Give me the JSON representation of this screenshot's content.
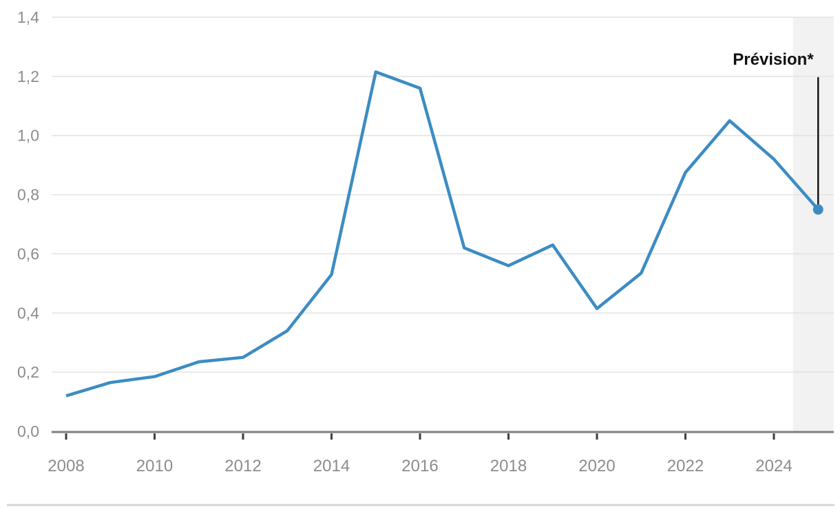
{
  "chart_data": {
    "type": "line",
    "title": "",
    "xlabel": "",
    "ylabel": "",
    "x": [
      2008,
      2009,
      2010,
      2011,
      2012,
      2013,
      2014,
      2015,
      2016,
      2017,
      2018,
      2019,
      2020,
      2021,
      2022,
      2023,
      2024,
      2025
    ],
    "values": [
      0.12,
      0.165,
      0.185,
      0.235,
      0.25,
      0.34,
      0.53,
      1.215,
      1.16,
      0.62,
      0.56,
      0.63,
      0.415,
      0.535,
      0.875,
      1.05,
      0.92,
      0.75
    ],
    "ylim": [
      0,
      1.4
    ],
    "xlim": [
      2007.7,
      2025.4
    ],
    "grid": true,
    "legend_position": "none",
    "y_ticks": [
      0,
      0.2,
      0.4,
      0.6,
      0.8,
      1.0,
      1.2,
      1.4
    ],
    "y_tick_labels": [
      "0,0",
      "0,2",
      "0,4",
      "0,6",
      "0,8",
      "1,0",
      "1,2",
      "1,4"
    ],
    "x_ticks": [
      2008,
      2010,
      2012,
      2014,
      2016,
      2018,
      2020,
      2022,
      2024
    ],
    "x_tick_labels": [
      "2008",
      "2010",
      "2012",
      "2014",
      "2016",
      "2018",
      "2020",
      "2022",
      "2024"
    ],
    "annotation": {
      "label": "Prévision*",
      "year": 2025,
      "value": 0.75
    },
    "forecast_band": {
      "year_start": 2024.43,
      "year_end": 2025.35
    },
    "colors": {
      "line": "#3c8cc3",
      "point": "#3c8cc3",
      "band": "#f2f2f2",
      "grid": "#e2e2e2",
      "axis": "#7d7d7d",
      "tick": "#3f3f3f",
      "tick_label": "#8c8c8c",
      "annotation_text": "#111111",
      "annotation_line": "#151515",
      "divider": "#d4d4d4"
    }
  }
}
